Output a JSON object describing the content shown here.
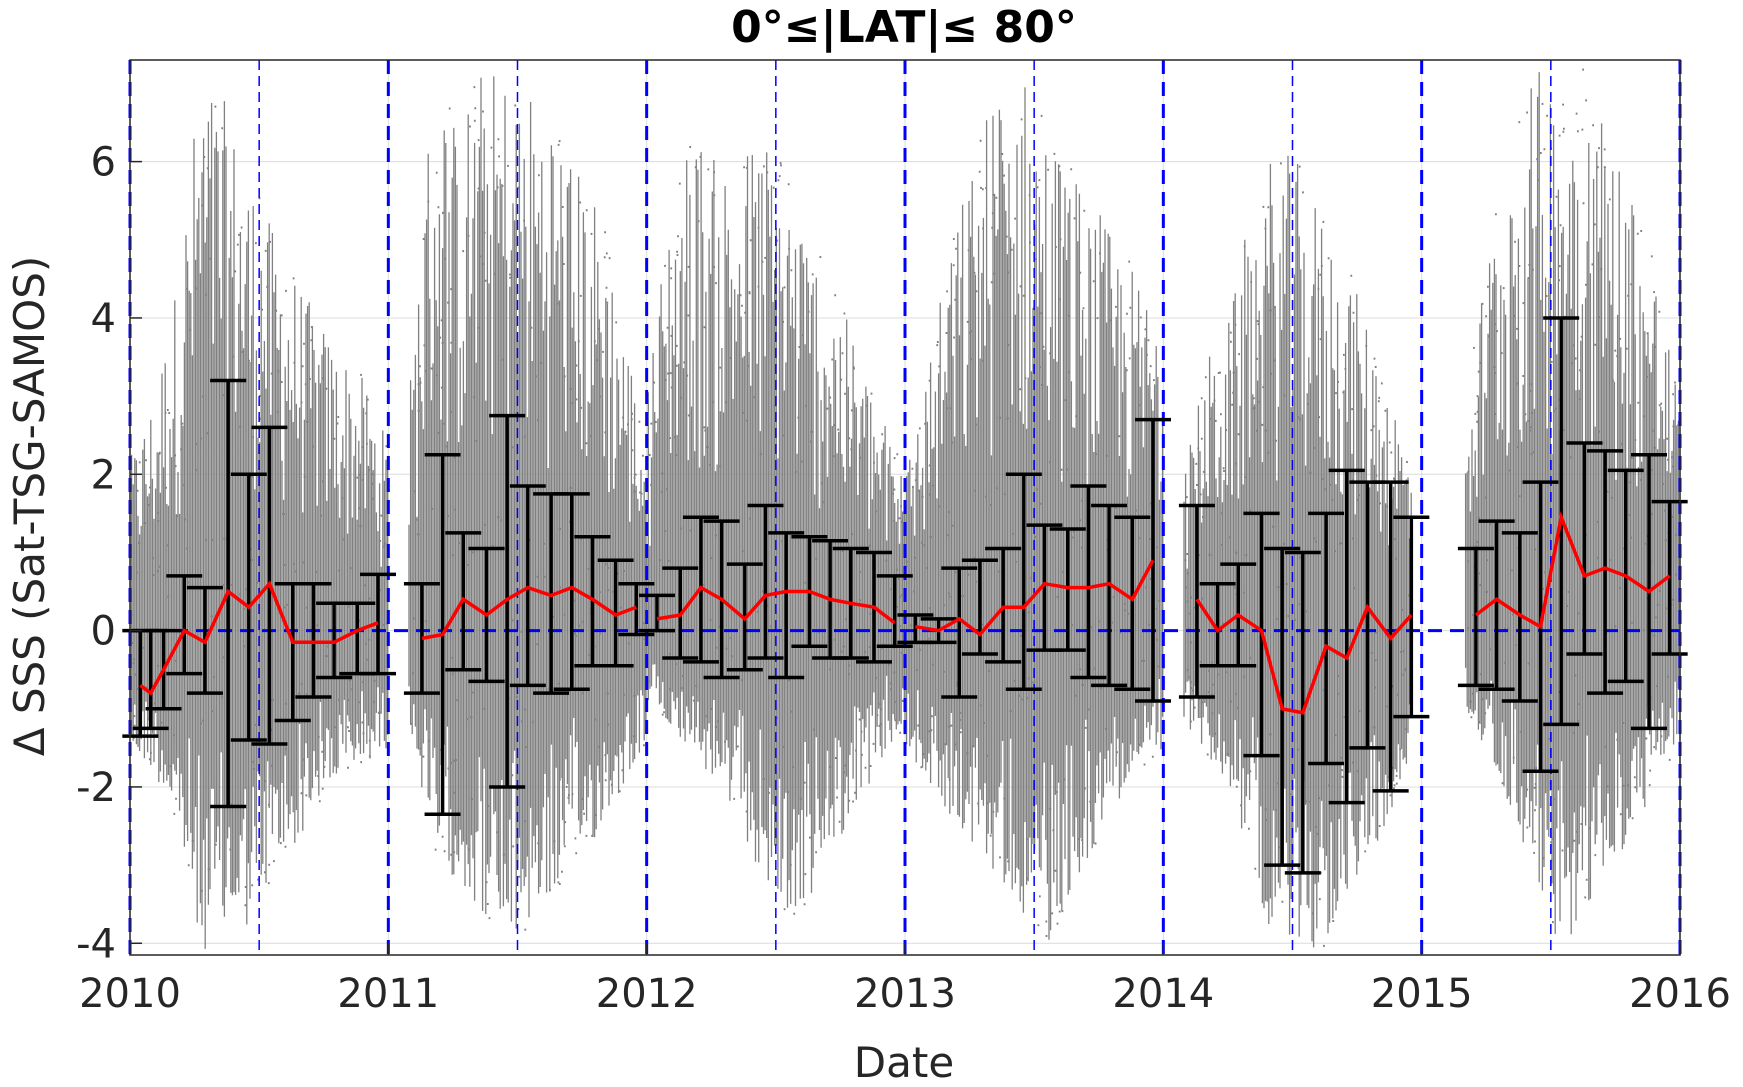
{
  "chart_data": {
    "type": "scatter",
    "title": "0°≤|LAT|≤ 80°",
    "xlabel": "Date",
    "ylabel": "Δ SSS (Sat-TSG-SAMOS)",
    "xlim": [
      2010,
      2016
    ],
    "ylim": [
      -4.15,
      7.3
    ],
    "x_ticks": [
      2010,
      2011,
      2012,
      2013,
      2014,
      2015,
      2016
    ],
    "y_ticks": [
      -4,
      -2,
      0,
      2,
      4,
      6
    ],
    "grid": true,
    "colors": {
      "scatter": "#808080",
      "mean_line": "#ff0000",
      "error_bars": "#000000",
      "year_lines": "#0000ff",
      "zero_line": "#0000ff"
    },
    "year_lines": [
      2010,
      2011,
      2012,
      2013,
      2014,
      2015,
      2016
    ],
    "midyear_lines": [
      2010.5,
      2011.5,
      2012.5,
      2013.5,
      2014.5,
      2015.5
    ],
    "zero_line": 0,
    "series": [
      {
        "x": [
          2010.04,
          2010.08,
          2010.13,
          2010.21,
          2010.29,
          2010.38,
          2010.46,
          2010.54,
          2010.63,
          2010.71,
          2010.79,
          2010.88,
          2010.96
        ],
        "mean": [
          -0.7,
          -0.8,
          -0.5,
          0.0,
          -0.15,
          0.5,
          0.3,
          0.6,
          -0.15,
          -0.15,
          -0.15,
          0.0,
          0.1
        ],
        "upper": [
          0.0,
          0.0,
          0.0,
          0.7,
          0.55,
          3.2,
          2.0,
          2.6,
          0.6,
          0.6,
          0.35,
          0.35,
          0.72
        ],
        "lower": [
          -1.35,
          -1.25,
          -1.0,
          -0.55,
          -0.8,
          -2.25,
          -1.4,
          -1.45,
          -1.15,
          -0.85,
          -0.6,
          -0.55,
          -0.55
        ]
      },
      {
        "x": [
          2011.13,
          2011.21,
          2011.29,
          2011.38,
          2011.46,
          2011.54,
          2011.63,
          2011.71,
          2011.79,
          2011.88,
          2011.96
        ],
        "mean": [
          -0.1,
          -0.05,
          0.4,
          0.2,
          0.4,
          0.55,
          0.45,
          0.55,
          0.4,
          0.2,
          0.3
        ],
        "upper": [
          0.6,
          2.25,
          1.25,
          1.05,
          2.75,
          1.85,
          1.75,
          1.75,
          1.2,
          0.9,
          0.6
        ],
        "lower": [
          -0.8,
          -2.35,
          -0.5,
          -0.65,
          -2.0,
          -0.7,
          -0.8,
          -0.75,
          -0.45,
          -0.45,
          -0.05
        ]
      },
      {
        "x": [
          2012.04,
          2012.13,
          2012.21,
          2012.29,
          2012.38,
          2012.46,
          2012.54,
          2012.63,
          2012.71,
          2012.79,
          2012.88,
          2012.96
        ],
        "mean": [
          0.15,
          0.2,
          0.55,
          0.4,
          0.15,
          0.45,
          0.5,
          0.5,
          0.4,
          0.35,
          0.3,
          0.1
        ],
        "upper": [
          0.45,
          0.8,
          1.45,
          1.4,
          0.85,
          1.6,
          1.25,
          1.2,
          1.15,
          1.05,
          1.0,
          0.7
        ],
        "lower": [
          0.0,
          -0.35,
          -0.4,
          -0.6,
          -0.5,
          -0.35,
          -0.6,
          -0.2,
          -0.35,
          -0.35,
          -0.4,
          -0.2
        ]
      },
      {
        "x": [
          2013.04,
          2013.13,
          2013.21,
          2013.29,
          2013.38,
          2013.46,
          2013.54,
          2013.63,
          2013.71,
          2013.79,
          2013.88,
          2013.96
        ],
        "mean": [
          0.05,
          0.0,
          0.15,
          -0.05,
          0.3,
          0.3,
          0.6,
          0.55,
          0.55,
          0.6,
          0.4,
          0.9
        ],
        "upper": [
          0.2,
          0.15,
          0.8,
          0.9,
          1.05,
          2.0,
          1.35,
          1.3,
          1.85,
          1.6,
          1.45,
          2.7
        ],
        "lower": [
          -0.15,
          -0.15,
          -0.85,
          -0.3,
          -0.4,
          -0.75,
          -0.25,
          -0.25,
          -0.6,
          -0.7,
          -0.75,
          -0.9
        ]
      },
      {
        "x": [
          2014.13,
          2014.21,
          2014.29,
          2014.38,
          2014.46,
          2014.54,
          2014.63,
          2014.71,
          2014.79,
          2014.88,
          2014.96
        ],
        "mean": [
          0.4,
          0.0,
          0.2,
          0.0,
          -1.0,
          -1.05,
          -0.2,
          -0.35,
          0.3,
          -0.1,
          0.2
        ],
        "upper": [
          1.6,
          0.6,
          0.85,
          1.5,
          1.05,
          1.0,
          1.5,
          2.05,
          1.9,
          1.9,
          1.45
        ],
        "lower": [
          -0.85,
          -0.45,
          -0.45,
          -1.6,
          -3.0,
          -3.1,
          -1.7,
          -2.2,
          -1.5,
          -2.05,
          -1.1
        ]
      },
      {
        "x": [
          2015.21,
          2015.29,
          2015.38,
          2015.46,
          2015.54,
          2015.63,
          2015.71,
          2015.79,
          2015.88,
          2015.96
        ],
        "mean": [
          0.2,
          0.4,
          0.2,
          0.05,
          1.45,
          0.7,
          0.8,
          0.7,
          0.5,
          0.7
        ],
        "upper": [
          1.05,
          1.4,
          1.25,
          1.9,
          4.0,
          2.4,
          2.3,
          2.05,
          2.25,
          1.65
        ],
        "lower": [
          -0.7,
          -0.75,
          -0.9,
          -1.8,
          -1.2,
          -0.3,
          -0.8,
          -0.65,
          -1.25,
          -0.3
        ]
      }
    ],
    "scatter_envelopes": [
      {
        "x0": 2010.0,
        "x1": 2011.0,
        "lo": [
          -1.6,
          -1.8,
          -2.5,
          -4.1,
          -4.0,
          -3.8,
          -3.2,
          -2.8,
          -2.2,
          -1.9,
          -1.7,
          -1.5
        ],
        "hi": [
          2.2,
          3.0,
          4.5,
          7.2,
          6.8,
          6.0,
          5.2,
          4.6,
          4.0,
          3.6,
          3.2,
          2.4
        ]
      },
      {
        "x0": 2011.08,
        "x1": 2012.0,
        "lo": [
          -1.2,
          -2.8,
          -3.2,
          -3.6,
          -4.1,
          -3.8,
          -3.4,
          -3.0,
          -2.6,
          -2.0,
          -1.4
        ],
        "hi": [
          3.0,
          7.2,
          6.5,
          7.2,
          7.2,
          7.0,
          6.8,
          6.0,
          5.5,
          4.0,
          2.5
        ]
      },
      {
        "x0": 2012.0,
        "x1": 2013.0,
        "lo": [
          -0.9,
          -1.2,
          -1.6,
          -2.0,
          -2.6,
          -3.2,
          -3.8,
          -3.4,
          -2.8,
          -2.2,
          -1.7,
          -1.2
        ],
        "hi": [
          3.2,
          5.5,
          6.5,
          6.0,
          6.2,
          6.4,
          5.8,
          5.0,
          4.4,
          3.6,
          2.8,
          2.0
        ]
      },
      {
        "x0": 2013.0,
        "x1": 2014.0,
        "lo": [
          -1.5,
          -2.0,
          -2.4,
          -2.8,
          -3.2,
          -3.6,
          -4.1,
          -3.4,
          -2.8,
          -2.2,
          -1.8,
          -1.5
        ],
        "hi": [
          2.0,
          3.5,
          5.0,
          6.2,
          7.2,
          7.2,
          6.5,
          6.0,
          5.5,
          5.0,
          4.5,
          4.0
        ]
      },
      {
        "x0": 2014.08,
        "x1": 2014.96,
        "lo": [
          -1.2,
          -1.6,
          -2.0,
          -3.0,
          -4.1,
          -4.1,
          -4.1,
          -3.6,
          -3.0,
          -2.4,
          -1.6
        ],
        "hi": [
          2.0,
          3.5,
          4.0,
          5.5,
          6.2,
          6.0,
          5.4,
          4.8,
          4.0,
          3.2,
          2.2
        ]
      },
      {
        "x0": 2015.17,
        "x1": 2016.0,
        "lo": [
          -1.0,
          -1.6,
          -2.4,
          -3.2,
          -4.1,
          -3.8,
          -3.2,
          -2.6,
          -2.0,
          -1.4
        ],
        "hi": [
          3.0,
          5.0,
          6.5,
          7.2,
          7.2,
          7.2,
          6.5,
          5.8,
          4.6,
          3.0
        ]
      }
    ]
  }
}
